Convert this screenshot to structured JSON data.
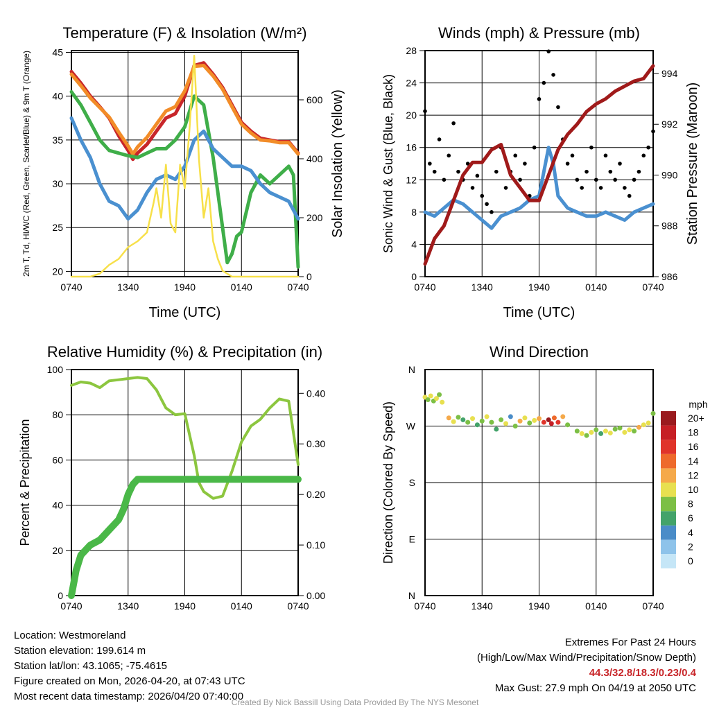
{
  "chart_data": [
    {
      "type": "line",
      "title": "Temperature (F) & Insolation (W/m²)",
      "xlabel": "Time (UTC)",
      "ylabel": "2m T, Td, HI/WC (Red, Green, Scarlet/Blue) & 9m T (Orange)",
      "y2label": "Solar Insolation (Yellow)",
      "x_ticks": [
        "0740",
        "1340",
        "1940",
        "0140",
        "0740"
      ],
      "ylim": [
        19.4,
        45.2
      ],
      "y_ticks": [
        20,
        25,
        30,
        35,
        40,
        45
      ],
      "y2lim": [
        0,
        767
      ],
      "y2_ticks": [
        0,
        200,
        400,
        600
      ],
      "grid": true,
      "series": [
        {
          "name": "2m T",
          "color": "#c8262a",
          "x": [
            0,
            1,
            2,
            3,
            4,
            5,
            6,
            6.5,
            7,
            8,
            9,
            10,
            11,
            12,
            13,
            14,
            15,
            16,
            17,
            18,
            19,
            20,
            21,
            22,
            23,
            24
          ],
          "values": [
            42.8,
            41.5,
            40,
            38.8,
            37.5,
            35.5,
            33.8,
            32.8,
            33.5,
            34.5,
            36,
            37.5,
            38,
            40,
            43.5,
            43.8,
            42.5,
            41,
            39,
            37,
            36,
            35.2,
            35,
            34.8,
            34.8,
            33.5
          ]
        },
        {
          "name": "9m T",
          "color": "#f28c28",
          "x": [
            0,
            1,
            2,
            3,
            4,
            5,
            6,
            6.5,
            7,
            8,
            9,
            10,
            11,
            12,
            13,
            14,
            15,
            16,
            17,
            18,
            19,
            20,
            21,
            22,
            23,
            24
          ],
          "values": [
            42.5,
            41.2,
            39.8,
            38.7,
            37.6,
            35.9,
            34.3,
            33.4,
            34.2,
            35.3,
            36.8,
            38.3,
            38.8,
            40.6,
            43.4,
            43.5,
            42.3,
            40.8,
            38.8,
            36.8,
            35.8,
            35,
            34.9,
            34.7,
            34.7,
            33.4
          ]
        },
        {
          "name": "Td",
          "color": "#3fae49",
          "x": [
            0,
            1,
            2,
            3,
            4,
            5,
            6,
            7,
            8,
            9,
            10,
            11,
            12,
            13,
            14,
            15,
            16,
            16.5,
            17,
            17.5,
            18,
            19,
            20,
            21,
            22,
            23,
            23.5,
            24
          ],
          "values": [
            40.5,
            39,
            37,
            35,
            33.8,
            33.5,
            33.2,
            33,
            33.5,
            34,
            34,
            35,
            36.5,
            40,
            39,
            33,
            25,
            21,
            22,
            24,
            24.5,
            29,
            31,
            30,
            31,
            32,
            31,
            20.5
          ]
        },
        {
          "name": "HI/WC",
          "color": "#4a90d0",
          "x": [
            0,
            1,
            2,
            3,
            4,
            5,
            6,
            7,
            8,
            9,
            10,
            11,
            12,
            13,
            14,
            15,
            16,
            17,
            18,
            19,
            20,
            21,
            22,
            23,
            24
          ],
          "values": [
            37.5,
            35,
            33,
            30,
            28,
            27.5,
            26,
            27,
            29,
            30.5,
            31,
            30.5,
            32,
            35,
            36,
            34,
            33,
            32,
            32,
            31.5,
            30,
            29,
            28.5,
            28,
            26
          ]
        },
        {
          "name": "Solar Insolation",
          "axis": "y2",
          "color": "#f7e04a",
          "x": [
            0,
            2,
            3,
            4,
            5,
            6,
            7,
            8,
            8.7,
            9,
            9.5,
            10,
            10.5,
            11,
            11.5,
            12,
            12.5,
            12.8,
            13,
            13.5,
            14,
            14.5,
            15,
            15.5,
            16,
            17,
            24
          ],
          "values": [
            0,
            0,
            10,
            40,
            60,
            100,
            120,
            150,
            250,
            300,
            200,
            380,
            180,
            150,
            380,
            300,
            500,
            650,
            750,
            400,
            200,
            300,
            120,
            60,
            20,
            0,
            0
          ]
        }
      ]
    },
    {
      "type": "line",
      "title": "Winds (mph) & Pressure (mb)",
      "xlabel": "Time (UTC)",
      "ylabel": "Sonic Wind & Gust (Blue, Black)",
      "y2label": "Station Pressure (Maroon)",
      "x_ticks": [
        "0740",
        "1340",
        "1940",
        "0140",
        "0740"
      ],
      "ylim": [
        0,
        28
      ],
      "y_ticks": [
        0,
        4,
        8,
        12,
        16,
        20,
        24,
        28
      ],
      "y2lim": [
        986,
        994.9
      ],
      "y2_ticks": [
        986,
        988,
        990,
        992,
        994
      ],
      "grid": true,
      "series": [
        {
          "name": "Sonic Wind",
          "color": "#4a90d0",
          "x": [
            0,
            1,
            2,
            3,
            4,
            5,
            6,
            7,
            8,
            9,
            10,
            11,
            12,
            12.5,
            13,
            13.5,
            14,
            15,
            16,
            17,
            18,
            19,
            20,
            21,
            22,
            23,
            24
          ],
          "values": [
            8,
            7.5,
            8.5,
            9.5,
            9,
            8,
            7,
            6,
            7.5,
            8,
            8.5,
            9.5,
            10,
            13,
            16,
            14,
            10,
            8.5,
            8,
            7.5,
            7.5,
            8,
            7.5,
            7,
            8,
            8.5,
            9
          ]
        },
        {
          "name": "Gust",
          "type": "scatter",
          "color": "#000000",
          "x": [
            0,
            0.5,
            1,
            1.5,
            2,
            2.5,
            3,
            3.5,
            4,
            4.5,
            5,
            5.5,
            6,
            6.5,
            7,
            7.5,
            8,
            8.5,
            9,
            9.5,
            10,
            10.5,
            11,
            11.5,
            12,
            12.5,
            13,
            13.5,
            14,
            14.5,
            15,
            15.5,
            16,
            16.5,
            17,
            17.5,
            18,
            18.5,
            19,
            19.5,
            20,
            20.5,
            21,
            21.5,
            22,
            22.5,
            23,
            23.5,
            24
          ],
          "values": [
            20.5,
            14,
            13,
            17,
            12,
            15,
            19,
            13,
            12,
            14,
            11,
            12.5,
            10,
            9,
            8,
            13,
            16,
            11,
            13,
            15,
            12,
            14,
            10,
            16,
            22,
            24,
            27.9,
            25,
            21,
            17,
            14,
            15,
            12,
            11,
            13,
            16,
            12,
            11,
            15,
            13,
            12,
            14,
            11,
            10,
            12,
            13,
            15,
            16,
            18
          ]
        },
        {
          "name": "Station Pressure",
          "axis": "y2",
          "color": "#a01a1a",
          "x": [
            0,
            1,
            2,
            3,
            4,
            5,
            6,
            7,
            8,
            9,
            10,
            11,
            12,
            13,
            14,
            15,
            16,
            17,
            18,
            19,
            20,
            21,
            22,
            23,
            24
          ],
          "values": [
            986.5,
            987.5,
            988,
            989,
            990,
            990.5,
            990.5,
            991,
            991.2,
            990,
            989.5,
            989,
            989,
            990,
            991,
            991.6,
            992,
            992.5,
            992.8,
            993,
            993.3,
            993.5,
            993.7,
            993.8,
            994.3
          ]
        }
      ]
    },
    {
      "type": "line",
      "title": "Relative Humidity (%) & Precipitation (in)",
      "ylabel": "Percent & Precipitation",
      "x_ticks": [
        "0740",
        "1340",
        "1940",
        "0140",
        "0740"
      ],
      "ylim": [
        0,
        100
      ],
      "y_ticks": [
        0,
        20,
        40,
        60,
        80,
        100
      ],
      "y2lim": [
        0,
        0.447
      ],
      "y2_ticks": [
        "0.00",
        "0.10",
        "0.20",
        "0.30",
        "0.40"
      ],
      "grid": true,
      "series": [
        {
          "name": "Relative Humidity",
          "color": "#8cc63f",
          "x": [
            0,
            1,
            2,
            3,
            4,
            5,
            6,
            7,
            8,
            9,
            10,
            11,
            12,
            13,
            13.5,
            14,
            15,
            16,
            17,
            18,
            19,
            20,
            21,
            22,
            23,
            24
          ],
          "values": [
            93,
            94.5,
            94,
            92,
            95,
            95.5,
            96,
            96.5,
            96,
            91,
            83,
            80,
            80.5,
            62,
            50,
            46,
            43,
            44,
            55,
            68,
            75,
            78,
            83,
            87,
            86,
            58
          ]
        },
        {
          "name": "Precipitation",
          "axis": "y2",
          "color": "#4ab848",
          "x": [
            0,
            0.3,
            0.5,
            1,
            2,
            3,
            4,
            5,
            5.5,
            6,
            6.5,
            7,
            24
          ],
          "values": [
            0,
            0.03,
            0.05,
            0.08,
            0.1,
            0.11,
            0.13,
            0.15,
            0.17,
            0.2,
            0.22,
            0.23,
            0.23
          ]
        }
      ]
    },
    {
      "type": "scatter",
      "title": "Wind Direction",
      "ylabel": "Direction (Colored By Speed)",
      "x_ticks": [
        "0740",
        "1340",
        "1940",
        "0140",
        "0740"
      ],
      "y_ticks": [
        "N",
        "E",
        "S",
        "W",
        "N"
      ],
      "ylim": [
        0,
        360
      ],
      "colorbar": {
        "title": "mph",
        "labels": [
          "0",
          "2",
          "4",
          "6",
          "8",
          "10",
          "12",
          "14",
          "16",
          "18",
          "20+"
        ],
        "colors": [
          "#c5e6f7",
          "#8ec3ea",
          "#4a8cc8",
          "#43a36a",
          "#7cbf45",
          "#e8e050",
          "#f5a94a",
          "#ee6a2c",
          "#e0342a",
          "#c61f25",
          "#9a1a1e"
        ]
      },
      "points": [
        [
          0,
          316,
          9
        ],
        [
          0.3,
          312,
          8
        ],
        [
          0.6,
          318,
          10
        ],
        [
          0.9,
          310,
          7
        ],
        [
          1.2,
          314,
          9
        ],
        [
          1.5,
          320,
          8
        ],
        [
          1.8,
          308,
          10
        ],
        [
          2.5,
          283,
          11
        ],
        [
          3,
          277,
          9
        ],
        [
          3.5,
          284,
          7
        ],
        [
          4,
          280,
          6
        ],
        [
          4.5,
          276,
          8
        ],
        [
          5,
          282,
          9
        ],
        [
          5.5,
          272,
          5
        ],
        [
          6,
          278,
          8
        ],
        [
          6.5,
          285,
          10
        ],
        [
          7,
          276,
          7
        ],
        [
          7.5,
          265,
          6
        ],
        [
          8,
          280,
          8
        ],
        [
          8.5,
          274,
          9
        ],
        [
          9,
          285,
          4
        ],
        [
          9.5,
          270,
          7
        ],
        [
          10,
          278,
          11
        ],
        [
          10.5,
          283,
          9
        ],
        [
          11,
          275,
          8
        ],
        [
          11.5,
          279,
          10
        ],
        [
          12,
          282,
          12
        ],
        [
          12.5,
          276,
          16
        ],
        [
          13,
          280,
          19
        ],
        [
          13.3,
          274,
          18
        ],
        [
          13.6,
          283,
          14
        ],
        [
          14,
          276,
          15
        ],
        [
          14.5,
          285,
          12
        ],
        [
          15,
          272,
          8
        ],
        [
          16,
          262,
          7
        ],
        [
          16.5,
          258,
          9
        ],
        [
          17,
          255,
          8
        ],
        [
          17.5,
          260,
          10
        ],
        [
          18,
          264,
          8
        ],
        [
          18.5,
          258,
          6
        ],
        [
          19,
          262,
          9
        ],
        [
          19.5,
          259,
          10
        ],
        [
          20,
          265,
          8
        ],
        [
          20.5,
          267,
          7
        ],
        [
          21,
          260,
          9
        ],
        [
          21.5,
          264,
          10
        ],
        [
          22,
          262,
          8
        ],
        [
          22.5,
          268,
          11
        ],
        [
          23,
          272,
          9
        ],
        [
          23.5,
          275,
          10
        ],
        [
          24,
          290,
          8
        ]
      ]
    }
  ],
  "info": {
    "location": "Location: Westmoreland",
    "elevation": "Station elevation: 199.614 m",
    "latlon": "Station lat/lon: 43.1065; -75.4615",
    "created": "Figure created on Mon, 2026-04-20, at 07:43 UTC",
    "recent": "Most recent data timestamp: 2026/04/20 07:40:00"
  },
  "extremes": {
    "title": "Extremes For Past 24 Hours",
    "subtitle": "(High/Low/Max Wind/Precipitation/Snow Depth)",
    "values": "44.3/32.8/18.3/0.23/0.4",
    "gust": "Max Gust: 27.9 mph On 04/19 at 2050 UTC"
  },
  "credit": "Created By Nick Bassill Using Data Provided By The NYS Mesonet"
}
